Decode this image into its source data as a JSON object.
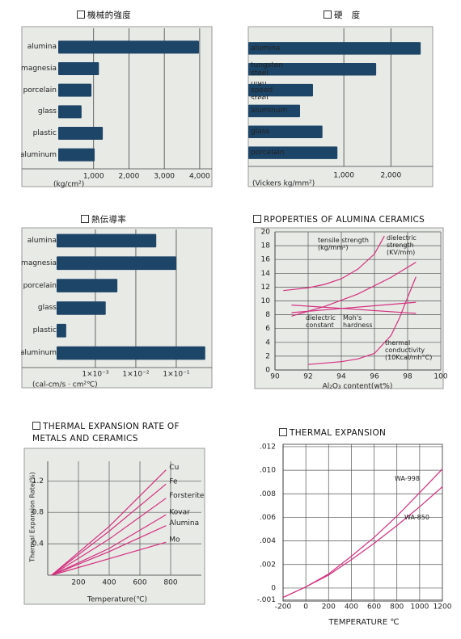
{
  "chart_data": [
    {
      "type": "hbar",
      "title": "機械的強度",
      "categories": [
        "alumina",
        "magnesia",
        "porcelain",
        "glass",
        "plastic",
        "aluminum"
      ],
      "values": [
        3980,
        1150,
        940,
        660,
        1260,
        1030
      ],
      "color": "#1d4568",
      "xlim": [
        0,
        4300
      ],
      "xticks": [
        {
          "value": 1000,
          "label": "1,000"
        },
        {
          "value": 2000,
          "label": "2,000"
        },
        {
          "value": 3000,
          "label": "3,000"
        },
        {
          "value": 4000,
          "label": "4,000"
        }
      ],
      "xlabel": "(kg/cm²)",
      "grid": true
    },
    {
      "type": "hbar",
      "title": "硬　度",
      "categories": [
        "alumina",
        "tungsten steel",
        "high speed steel",
        "aluminum",
        "glass",
        "porcelain"
      ],
      "values": [
        3100,
        1610,
        635,
        525,
        730,
        910
      ],
      "color": "#1d4568",
      "xscale": "log",
      "xlim": [
        245,
        3700
      ],
      "xticks": [
        {
          "value": 1000,
          "label": "1,000"
        },
        {
          "value": 2000,
          "label": "2,000"
        }
      ],
      "xlabel": "(Vickers kg/mm²)",
      "grid": true
    },
    {
      "type": "hbar",
      "title": "熱伝導率",
      "categories": [
        "alumina",
        "magnesia",
        "porcelain",
        "glass",
        "plastic",
        "aluminum"
      ],
      "values": [
        0.032,
        0.1,
        0.0035,
        0.0018,
        0.00019,
        0.52
      ],
      "color": "#1d4568",
      "xscale": "log",
      "xlim": [
        0.00011,
        0.76
      ],
      "xticks": [
        {
          "value": 0.001,
          "label": "1×10⁻³"
        },
        {
          "value": 0.01,
          "label": "1×10⁻²"
        },
        {
          "value": 0.1,
          "label": "1×10⁻¹"
        }
      ],
      "xlabel": "(cal-cm/s · cm²℃)",
      "grid": true
    },
    {
      "type": "line",
      "title": "RPOPERTIES OF ALUMINA CERAMICS",
      "xlabel": "Al₂O₃ content(wt%)",
      "xlim": [
        90,
        100
      ],
      "xticks": [
        90,
        92,
        94,
        96,
        98,
        100
      ],
      "ylim": [
        0,
        20
      ],
      "yticks": [
        0,
        2,
        4,
        6,
        8,
        10,
        12,
        14,
        16,
        18,
        20
      ],
      "grid": true,
      "series": [
        {
          "name": "tensile strength (kg/mm²)",
          "color": "#d42f7f",
          "x": [
            90.5,
            92,
            93,
            94,
            95,
            96,
            96.6
          ],
          "values": [
            11.5,
            11.9,
            12.4,
            13.2,
            14.6,
            16.8,
            19.4
          ]
        },
        {
          "name": "dielectric strength (KV/mm)",
          "color": "#d42f7f",
          "x": [
            91,
            93,
            95,
            97,
            98.5
          ],
          "values": [
            7.8,
            9.2,
            11,
            13.4,
            15.6
          ]
        },
        {
          "name": "dielectric constant",
          "color": "#d42f7f",
          "x": [
            91,
            98.5
          ],
          "values": [
            8.3,
            9.8
          ]
        },
        {
          "name": "Moh's hardness",
          "color": "#d42f7f",
          "x": [
            91,
            98.5
          ],
          "values": [
            9.4,
            8.2
          ]
        },
        {
          "name": "thermal conductivity (10Kcal/mh°C)",
          "color": "#d42f7f",
          "x": [
            92,
            94,
            95,
            96,
            97,
            97.5,
            98,
            98.5
          ],
          "values": [
            0.8,
            1.2,
            1.6,
            2.4,
            5,
            7.5,
            10.5,
            13.5
          ]
        }
      ]
    },
    {
      "type": "line",
      "title": "THERMAL EXPANSION RATE OF METALS AND CERAMICS",
      "xlabel": "Temperature(℃)",
      "ylabel": "Thermal Expansion Rate(%)",
      "xlim": [
        0,
        1000
      ],
      "xticks": [
        200,
        400,
        600,
        800
      ],
      "ylim": [
        0,
        1.45
      ],
      "yticks": [
        0.4,
        0.8,
        1.2
      ],
      "grid": true,
      "series": [
        {
          "name": "Cu",
          "color": "#d42f7f",
          "x": [
            25,
            400,
            770
          ],
          "values": [
            0,
            0.62,
            1.34
          ]
        },
        {
          "name": "Fe",
          "color": "#d42f7f",
          "x": [
            25,
            400,
            770
          ],
          "values": [
            0,
            0.56,
            1.16
          ]
        },
        {
          "name": "Forsterite",
          "color": "#d42f7f",
          "x": [
            25,
            400,
            770
          ],
          "values": [
            0,
            0.46,
            0.98
          ]
        },
        {
          "name": "Kovar",
          "color": "#d42f7f",
          "x": [
            25,
            400,
            770
          ],
          "values": [
            0,
            0.34,
            0.77
          ]
        },
        {
          "name": "Alumina",
          "color": "#d42f7f",
          "x": [
            25,
            400,
            770
          ],
          "values": [
            0,
            0.3,
            0.63
          ]
        },
        {
          "name": "Mo",
          "color": "#d42f7f",
          "x": [
            25,
            400,
            770
          ],
          "values": [
            0,
            0.21,
            0.42
          ]
        }
      ]
    },
    {
      "type": "line",
      "title": "THERMAL EXPANSION",
      "xlabel": "TEMPERATURE ℃",
      "xlim": [
        -200,
        1200
      ],
      "xticks": [
        -200,
        0,
        200,
        400,
        600,
        800,
        1000,
        1200
      ],
      "ylim": [
        -0.0011,
        0.0122
      ],
      "yticks": [
        {
          "value": 0.012,
          "label": ".012"
        },
        {
          "value": 0.01,
          "label": ".010"
        },
        {
          "value": 0.008,
          "label": ".008"
        },
        {
          "value": 0.006,
          "label": ".006"
        },
        {
          "value": 0.004,
          "label": ".004"
        },
        {
          "value": 0.002,
          "label": ".002"
        },
        0,
        {
          "value": -0.001,
          "label": "-.001"
        }
      ],
      "grid": true,
      "series": [
        {
          "name": "WA-998",
          "color": "#d42f7f",
          "x": [
            -200,
            0,
            200,
            400,
            600,
            800,
            1000,
            1200
          ],
          "values": [
            -0.0008,
            0.0001,
            0.0012,
            0.0027,
            0.0043,
            0.0061,
            0.0081,
            0.0101
          ]
        },
        {
          "name": "WA-850",
          "color": "#d42f7f",
          "x": [
            -200,
            0,
            200,
            400,
            600,
            800,
            1000,
            1200
          ],
          "values": [
            -0.0008,
            0.0001,
            0.0011,
            0.0024,
            0.0038,
            0.0053,
            0.0069,
            0.0086
          ]
        }
      ]
    }
  ]
}
